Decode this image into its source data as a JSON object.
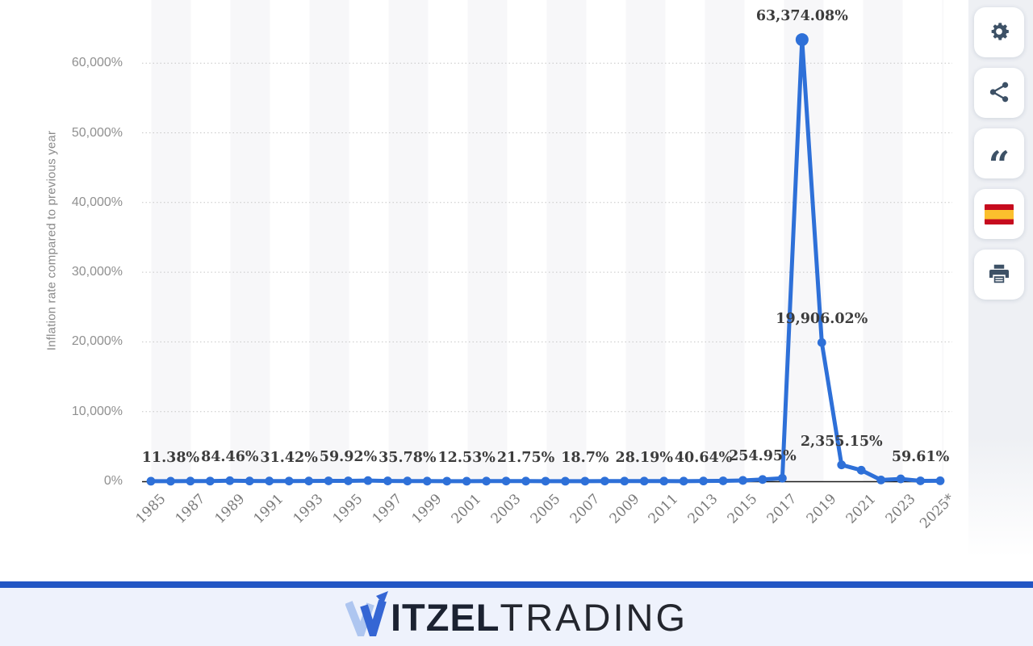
{
  "chart": {
    "y_axis": {
      "title": "Inflation rate compared to previous year",
      "tick_values": [
        0,
        10000,
        20000,
        30000,
        40000,
        50000,
        60000
      ],
      "tick_labels": [
        "0%",
        "10,000%",
        "20,000%",
        "30,000%",
        "40,000%",
        "50,000%",
        "60,000%"
      ]
    },
    "x_axis": {
      "tick_labels": [
        "1985",
        "1987",
        "1989",
        "1991",
        "1993",
        "1995",
        "1997",
        "1999",
        "2001",
        "2003",
        "2005",
        "2007",
        "2009",
        "2011",
        "2013",
        "2015",
        "2017",
        "2019",
        "2021",
        "2023",
        "2025*"
      ]
    },
    "annotations": [
      {
        "year": 1986,
        "label": "11.38%"
      },
      {
        "year": 1989,
        "label": "84.46%"
      },
      {
        "year": 1992,
        "label": "31.42%"
      },
      {
        "year": 1995,
        "label": "59.92%"
      },
      {
        "year": 1998,
        "label": "35.78%"
      },
      {
        "year": 2001,
        "label": "12.53%"
      },
      {
        "year": 2004,
        "label": "21.75%"
      },
      {
        "year": 2007,
        "label": "18.7%"
      },
      {
        "year": 2010,
        "label": "28.19%"
      },
      {
        "year": 2013,
        "label": "40.64%"
      },
      {
        "year": 2016,
        "label": "254.95%"
      },
      {
        "year": 2018,
        "label": "63,374.08%"
      },
      {
        "year": 2019,
        "label": "19,906.02%"
      },
      {
        "year": 2020,
        "label": "2,355.15%"
      },
      {
        "year": 2024,
        "label": "59.61%"
      }
    ]
  },
  "chart_data": {
    "type": "line",
    "title": "",
    "xlabel": "",
    "ylabel": "Inflation rate compared to previous year",
    "ylim": [
      0,
      65000
    ],
    "yticks": [
      0,
      10000,
      20000,
      30000,
      40000,
      50000,
      60000
    ],
    "grid": "dotted-horizontal",
    "legend": "none",
    "x": [
      1985,
      1986,
      1987,
      1988,
      1989,
      1990,
      1991,
      1992,
      1993,
      1994,
      1995,
      1996,
      1997,
      1998,
      1999,
      2000,
      2001,
      2002,
      2003,
      2004,
      2005,
      2006,
      2007,
      2008,
      2009,
      2010,
      2011,
      2012,
      2013,
      2014,
      2015,
      2016,
      2017,
      2018,
      2019,
      2020,
      2021,
      2022,
      2023,
      2024,
      2025
    ],
    "values": [
      11.4,
      11.38,
      28.1,
      29.5,
      84.46,
      40.7,
      34.2,
      31.42,
      38.1,
      60.8,
      59.92,
      99.9,
      50.0,
      35.78,
      23.6,
      16.2,
      12.53,
      22.4,
      31.1,
      21.75,
      16.0,
      13.7,
      18.7,
      30.4,
      27.1,
      28.19,
      26.1,
      21.1,
      40.64,
      62.2,
      121.7,
      254.95,
      438.1,
      63374.08,
      19906.02,
      2355.15,
      1588.5,
      186.5,
      337.5,
      59.61,
      71.7
    ],
    "labeled_points": {
      "1986": 11.38,
      "1989": 84.46,
      "1992": 31.42,
      "1995": 59.92,
      "1998": 35.78,
      "2001": 12.53,
      "2004": 21.75,
      "2007": 18.7,
      "2010": 28.19,
      "2013": 40.64,
      "2016": 254.95,
      "2018": 63374.08,
      "2019": 19906.02,
      "2020": 2355.15,
      "2024": 59.61
    },
    "line_color": "#2e70d8",
    "note": "Last category shown as 2025*"
  },
  "sidebar": {
    "buttons": [
      {
        "id": "settings",
        "icon": "gear-icon"
      },
      {
        "id": "share",
        "icon": "share-icon"
      },
      {
        "id": "cite",
        "icon": "quote-icon"
      },
      {
        "id": "language-spanish",
        "icon": "spain-flag-icon"
      },
      {
        "id": "print",
        "icon": "printer-icon"
      }
    ],
    "quote_glyph": "“"
  },
  "footer": {
    "brand_part1": "ITZEL",
    "brand_part2": "TRADING"
  },
  "colors": {
    "line": "#2e70d8",
    "footer_bar": "#2256c4",
    "footer_bg": "#eef2fc",
    "side_strip": "#eef0f4",
    "icon": "#3d5166",
    "flag_red": "#c60b1e",
    "flag_yellow": "#fbc02d",
    "band_gray": "#f7f7f9"
  }
}
